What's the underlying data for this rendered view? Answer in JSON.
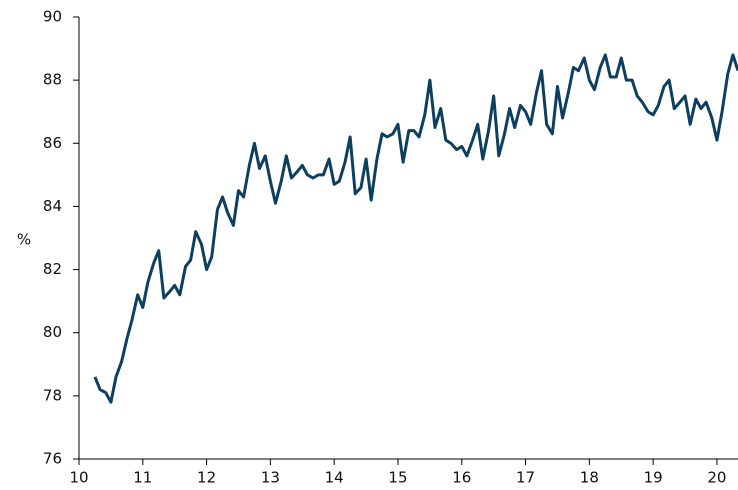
{
  "chart_data": {
    "type": "line",
    "y_label": "%",
    "color": "#0d3f61",
    "x": [
      10.25,
      10.33,
      10.42,
      10.5,
      10.58,
      10.67,
      10.75,
      10.83,
      10.92,
      11,
      11.08,
      11.17,
      11.25,
      11.33,
      11.42,
      11.5,
      11.58,
      11.67,
      11.75,
      11.83,
      11.92,
      12,
      12.08,
      12.17,
      12.25,
      12.33,
      12.42,
      12.5,
      12.58,
      12.67,
      12.75,
      12.83,
      12.92,
      13,
      13.08,
      13.17,
      13.25,
      13.33,
      13.42,
      13.5,
      13.58,
      13.67,
      13.75,
      13.83,
      13.92,
      14,
      14.08,
      14.17,
      14.25,
      14.33,
      14.42,
      14.5,
      14.58,
      14.67,
      14.75,
      14.83,
      14.92,
      15,
      15.08,
      15.17,
      15.25,
      15.33,
      15.42,
      15.5,
      15.58,
      15.67,
      15.75,
      15.83,
      15.92,
      16,
      16.08,
      16.17,
      16.25,
      16.33,
      16.42,
      16.5,
      16.58,
      16.67,
      16.75,
      16.83,
      16.92,
      17,
      17.08,
      17.17,
      17.25,
      17.33,
      17.42,
      17.5,
      17.58,
      17.67,
      17.75,
      17.83,
      17.92,
      18,
      18.08,
      18.17,
      18.25,
      18.33,
      18.42,
      18.5,
      18.58,
      18.67,
      18.75,
      18.83,
      18.92,
      19,
      19.08,
      19.17,
      19.25,
      19.33,
      19.42,
      19.5,
      19.58,
      19.67,
      19.75,
      19.83,
      19.92,
      20,
      20.08,
      20.17,
      20.25,
      20.33
    ],
    "values": [
      78.6,
      78.2,
      78.1,
      77.8,
      78.6,
      79.1,
      79.8,
      80.4,
      81.2,
      80.8,
      81.6,
      82.2,
      82.6,
      81.1,
      81.3,
      81.5,
      81.2,
      82.1,
      82.3,
      83.2,
      82.8,
      82.0,
      82.4,
      83.9,
      84.3,
      83.8,
      83.4,
      84.5,
      84.3,
      85.3,
      86.0,
      85.2,
      85.6,
      84.8,
      84.1,
      84.8,
      85.6,
      84.9,
      85.1,
      85.3,
      85.0,
      84.9,
      85.0,
      85.0,
      85.5,
      84.7,
      84.8,
      85.4,
      86.2,
      84.4,
      84.6,
      85.5,
      84.2,
      85.5,
      86.3,
      86.2,
      86.3,
      86.6,
      85.4,
      86.4,
      86.4,
      86.2,
      86.9,
      88.0,
      86.5,
      87.1,
      86.1,
      86.0,
      85.8,
      85.9,
      85.6,
      86.1,
      86.6,
      85.5,
      86.4,
      87.5,
      85.6,
      86.3,
      87.1,
      86.5,
      87.2,
      87.0,
      86.6,
      87.6,
      88.3,
      86.6,
      86.3,
      87.8,
      86.8,
      87.6,
      88.4,
      88.3,
      88.7,
      88.0,
      87.7,
      88.4,
      88.8,
      88.1,
      88.1,
      88.7,
      88.0,
      88.0,
      87.5,
      87.3,
      87.0,
      86.9,
      87.2,
      87.8,
      88.0,
      87.1,
      87.3,
      87.5,
      86.6,
      87.4,
      87.1,
      87.3,
      86.8,
      86.1,
      87.0,
      88.2,
      88.8,
      88.3
    ],
    "xlim": [
      10,
      20.33
    ],
    "xticks": [
      10,
      11,
      12,
      13,
      14,
      15,
      16,
      17,
      18,
      19,
      20
    ],
    "ylim": [
      76,
      90
    ],
    "yticks": [
      76,
      78,
      80,
      82,
      84,
      86,
      88,
      90
    ]
  }
}
